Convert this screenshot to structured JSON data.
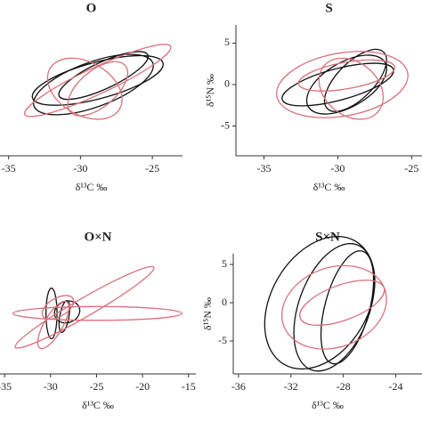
{
  "chart_data": [
    {
      "type": "ellipse",
      "title": "O",
      "x_label": "δ¹³C ‰",
      "xlim": [
        -35.6,
        -22.9
      ],
      "ylim": [
        -8.6,
        7.2
      ],
      "xticks": [
        -35,
        -30,
        -25
      ],
      "series": [
        {
          "color": "#111111",
          "ellipses": [
            {
              "cx": -29.1,
              "cy": 0,
              "rx": 4.4,
              "ry": 2.7,
              "angle": -20
            },
            {
              "cx": -28.8,
              "cy": 0.5,
              "rx": 4.7,
              "ry": 2.2,
              "angle": -15
            },
            {
              "cx": -28.4,
              "cy": 1.1,
              "rx": 3.4,
              "ry": 1.6,
              "angle": -25
            }
          ]
        },
        {
          "color": "#d9707a",
          "ellipses": [
            {
              "cx": -28.8,
              "cy": 0.5,
              "rx": 5.6,
              "ry": 1.6,
              "angle": -25
            },
            {
              "cx": -29.7,
              "cy": -0.5,
              "rx": 2.8,
              "ry": 3.2,
              "angle": 30
            },
            {
              "cx": -28.8,
              "cy": -0.5,
              "rx": 2.5,
              "ry": 2.2,
              "angle": -40
            }
          ]
        }
      ]
    },
    {
      "type": "ellipse",
      "title": "S",
      "x_label": "δ¹³C ‰",
      "y_label": "δ¹⁵N ‰",
      "xlim": [
        -36.9,
        -24.3
      ],
      "ylim": [
        -8.6,
        7.2
      ],
      "xticks": [
        -35,
        -30,
        -25
      ],
      "yticks": [
        5,
        0,
        -5
      ],
      "series": [
        {
          "color": "#111111",
          "ellipses": [
            {
              "cx": -30.0,
              "cy": 0,
              "rx": 3.9,
              "ry": 1.9,
              "angle": -15
            },
            {
              "cx": -29.4,
              "cy": 0,
              "rx": 3.0,
              "ry": 2.7,
              "angle": -30
            },
            {
              "cx": -28.8,
              "cy": 0.5,
              "rx": 2.7,
              "ry": 2.2,
              "angle": -45
            }
          ]
        },
        {
          "color": "#d9707a",
          "ellipses": [
            {
              "cx": -29.7,
              "cy": 0,
              "rx": 4.5,
              "ry": 3.8,
              "angle": -10
            },
            {
              "cx": -29.1,
              "cy": -0.5,
              "rx": 2.4,
              "ry": 3.2,
              "angle": 40
            },
            {
              "cx": -29.4,
              "cy": 1.1,
              "rx": 3.3,
              "ry": 1.6,
              "angle": -10
            }
          ]
        }
      ]
    },
    {
      "type": "ellipse",
      "title": "O×N",
      "x_label": "δ¹³C ‰",
      "xlim": [
        -35.5,
        -14.2
      ],
      "ylim": [
        -7.9,
        7.8
      ],
      "xticks": [
        -35,
        -30,
        -25,
        -20,
        -15
      ],
      "series": [
        {
          "color": "#111111",
          "ellipses": [
            {
              "cx": -29.9,
              "cy": 0,
              "rx": 0.6,
              "ry": 3.3,
              "angle": 0
            },
            {
              "cx": -28.2,
              "cy": 0.2,
              "rx": 1.4,
              "ry": 1.4,
              "angle": -20
            },
            {
              "cx": -28.5,
              "cy": -0.4,
              "rx": 0.5,
              "ry": 2.1,
              "angle": 10
            }
          ]
        },
        {
          "color": "#d9707a",
          "ellipses": [
            {
              "cx": -24.9,
              "cy": 0,
              "rx": 9.2,
              "ry": 0.9,
              "angle": 0
            },
            {
              "cx": -26.3,
              "cy": 0.8,
              "rx": 8.7,
              "ry": 1.2,
              "angle": -30
            },
            {
              "cx": -29.2,
              "cy": 0.8,
              "rx": 1.9,
              "ry": 1.2,
              "angle": -30
            },
            {
              "cx": -29.7,
              "cy": -1.5,
              "rx": 1.0,
              "ry": 3.5,
              "angle": 30
            }
          ]
        }
      ]
    },
    {
      "type": "ellipse",
      "title": "S×N",
      "x_label": "δ¹³C ‰",
      "y_label": "δ¹⁵N ‰",
      "xlim": [
        -36.4,
        -22.0
      ],
      "ylim": [
        -9.3,
        6.4
      ],
      "xticks": [
        -36,
        -32,
        -28,
        -24
      ],
      "yticks": [
        5,
        0,
        -5
      ],
      "series": [
        {
          "color": "#111111",
          "ellipses": [
            {
              "cx": -29.8,
              "cy": 0,
              "rx": 3.7,
              "ry": 9.3,
              "angle": 30
            },
            {
              "cx": -28.7,
              "cy": -0.6,
              "rx": 2.7,
              "ry": 8.7,
              "angle": 20
            },
            {
              "cx": -27.7,
              "cy": -0.6,
              "rx": 1.7,
              "ry": 7.6,
              "angle": 15
            }
          ]
        },
        {
          "color": "#d9707a",
          "ellipses": [
            {
              "cx": -28.7,
              "cy": -0.6,
              "rx": 4.1,
              "ry": 5.2,
              "angle": -20
            },
            {
              "cx": -28.1,
              "cy": 0,
              "rx": 3.4,
              "ry": 2.3,
              "angle": -20
            }
          ]
        }
      ]
    }
  ]
}
